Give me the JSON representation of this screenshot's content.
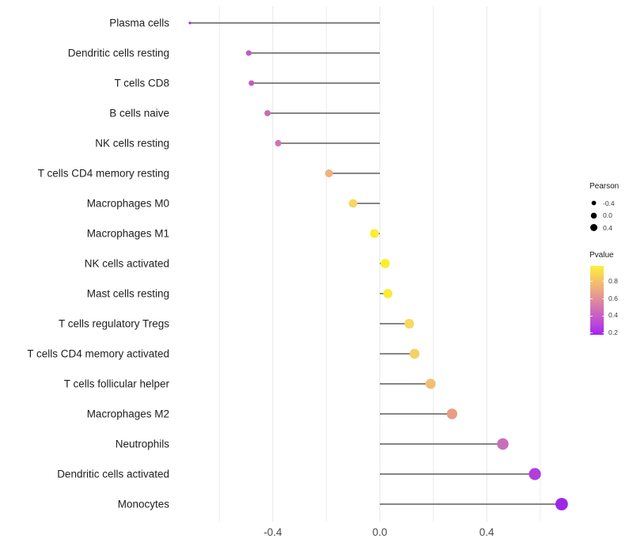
{
  "chart_data": {
    "type": "lollipop",
    "orientation": "horizontal",
    "title": "",
    "xlabel": "",
    "ylabel": "",
    "xlim": [
      -0.77,
      0.77
    ],
    "x_ticks": [
      -0.4,
      0.0,
      0.4
    ],
    "x_tick_labels": [
      "-0.4",
      "0.0",
      "0.4"
    ],
    "x_minor_breaks": [
      -0.6,
      -0.2,
      0.2,
      0.6
    ],
    "grid": "vertical-only",
    "points": [
      {
        "label": "Plasma cells",
        "pearson": -0.71,
        "pvalue_est": 0.2,
        "color": "#9b2bef"
      },
      {
        "label": "Dendritic cells resting",
        "pearson": -0.49,
        "pvalue_est": 0.45,
        "color": "#c455c2"
      },
      {
        "label": "T cells CD8",
        "pearson": -0.48,
        "pvalue_est": 0.45,
        "color": "#c658c0"
      },
      {
        "label": "B cells naive",
        "pearson": -0.42,
        "pvalue_est": 0.5,
        "color": "#cd68b9"
      },
      {
        "label": "NK cells resting",
        "pearson": -0.38,
        "pvalue_est": 0.52,
        "color": "#d173b2"
      },
      {
        "label": "T cells CD4 memory resting",
        "pearson": -0.19,
        "pvalue_est": 0.75,
        "color": "#efb27d"
      },
      {
        "label": "Macrophages M0",
        "pearson": -0.1,
        "pvalue_est": 0.85,
        "color": "#f6d564"
      },
      {
        "label": "Macrophages M1",
        "pearson": -0.02,
        "pvalue_est": 0.95,
        "color": "#faed35"
      },
      {
        "label": "NK cells activated",
        "pearson": 0.02,
        "pvalue_est": 0.96,
        "color": "#faef2e"
      },
      {
        "label": "Mast cells resting",
        "pearson": 0.03,
        "pvalue_est": 0.95,
        "color": "#faec38"
      },
      {
        "label": "T cells regulatory  Tregs",
        "pearson": 0.11,
        "pvalue_est": 0.86,
        "color": "#f6d95e"
      },
      {
        "label": "T cells CD4 memory activated",
        "pearson": 0.13,
        "pvalue_est": 0.84,
        "color": "#f5d166"
      },
      {
        "label": "T cells follicular helper",
        "pearson": 0.19,
        "pvalue_est": 0.78,
        "color": "#f2be76"
      },
      {
        "label": "Macrophages M2",
        "pearson": 0.27,
        "pvalue_est": 0.65,
        "color": "#ea9c87"
      },
      {
        "label": "Neutrophils",
        "pearson": 0.46,
        "pvalue_est": 0.48,
        "color": "#c96fb9"
      },
      {
        "label": "Dendritic cells activated",
        "pearson": 0.58,
        "pvalue_est": 0.3,
        "color": "#b23edc"
      },
      {
        "label": "Monocytes",
        "pearson": 0.68,
        "pvalue_est": 0.2,
        "color": "#9d27e4"
      }
    ],
    "legend": {
      "size": {
        "title": "Pearson",
        "entries": [
          {
            "label": "-0.4",
            "value": -0.4
          },
          {
            "label": "0.0",
            "value": 0.0
          },
          {
            "label": "0.4",
            "value": 0.4
          }
        ],
        "key_color": "#000000"
      },
      "color": {
        "title": "Pvalue",
        "ticks": [
          0.8,
          0.6,
          0.4,
          0.2
        ],
        "tick_labels": [
          "0.8",
          "0.6",
          "0.4",
          "0.2"
        ],
        "range": [
          0.18,
          0.985
        ],
        "gradient_stops_bottom_to_top": [
          "#a623f0 0%",
          "#b946da 15%",
          "#cd66bd 32%",
          "#dd87a0 48%",
          "#eaa488 62%",
          "#f3c169 78%",
          "#f8dc50 90%",
          "#fbee3c 100%"
        ]
      }
    },
    "style_colors": {
      "stem": "#3d3d3d",
      "grid_major": "#e7e7e7",
      "grid_minor": "#ededed",
      "axis_text": "#4a4a4a",
      "y_label_text": "#212121",
      "background": "#ffffff"
    }
  }
}
